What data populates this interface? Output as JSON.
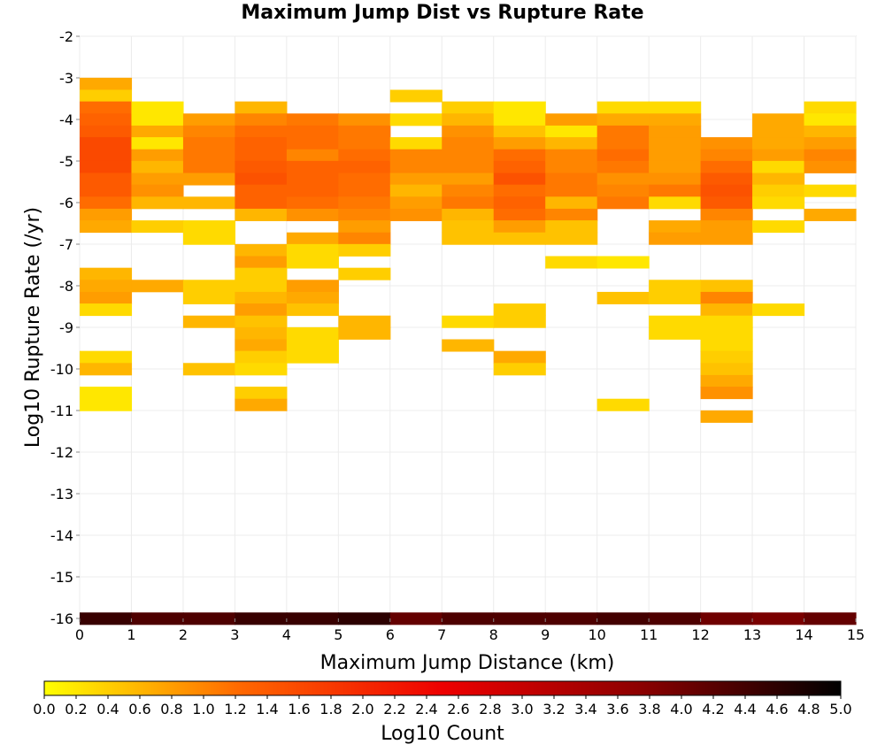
{
  "chart_data": {
    "type": "heatmap",
    "title": "Maximum Jump Dist vs Rupture Rate",
    "xlabel": "Maximum Jump Distance (km)",
    "ylabel": "Log10 Rupture Rate (/yr)",
    "xlim": [
      0,
      15
    ],
    "ylim": [
      -16,
      -2
    ],
    "x_bin_width": 1,
    "y_bin_height": 0.2857,
    "x_ticks": [
      "0",
      "1",
      "2",
      "3",
      "4",
      "5",
      "6",
      "7",
      "8",
      "9",
      "10",
      "11",
      "12",
      "13",
      "14",
      "15"
    ],
    "y_ticks": [
      "-2",
      "-3",
      "-4",
      "-5",
      "-6",
      "-7",
      "-8",
      "-9",
      "-10",
      "-11",
      "-12",
      "-13",
      "-14",
      "-15",
      "-16"
    ],
    "grid": true,
    "colorbar": {
      "label": "Log10 Count",
      "min": 0.0,
      "max": 5.0,
      "ticks": [
        "0.0",
        "0.2",
        "0.4",
        "0.6",
        "0.8",
        "1.0",
        "1.2",
        "1.4",
        "1.6",
        "1.8",
        "2.0",
        "2.2",
        "2.4",
        "2.6",
        "2.8",
        "3.0",
        "3.2",
        "3.4",
        "3.6",
        "3.8",
        "4.0",
        "4.2",
        "4.4",
        "4.6",
        "4.8",
        "5.0"
      ],
      "colors": [
        "#ffff00",
        "#ff6600",
        "#ee0000",
        "#8b0000",
        "#000000"
      ],
      "placement": "bottom"
    },
    "columns": [
      {
        "x": 0,
        "cells": [
          [
            -3.14,
            0.7
          ],
          [
            -3.43,
            0.4
          ],
          [
            -3.71,
            1.2
          ],
          [
            -4.0,
            1.3
          ],
          [
            -4.29,
            1.4
          ],
          [
            -4.57,
            1.6
          ],
          [
            -4.86,
            1.6
          ],
          [
            -5.14,
            1.6
          ],
          [
            -5.43,
            1.4
          ],
          [
            -5.71,
            1.4
          ],
          [
            -6.0,
            1.2
          ],
          [
            -6.29,
            0.8
          ],
          [
            -6.57,
            0.7
          ],
          [
            -7.71,
            0.6
          ],
          [
            -8.0,
            0.7
          ],
          [
            -8.29,
            0.8
          ],
          [
            -8.57,
            0.3
          ],
          [
            -9.71,
            0.3
          ],
          [
            -10.0,
            0.6
          ],
          [
            -10.57,
            0.2
          ],
          [
            -10.86,
            0.2
          ],
          [
            -16.0,
            4.5
          ]
        ]
      },
      {
        "x": 1,
        "cells": [
          [
            -3.71,
            0.2
          ],
          [
            -4.0,
            0.2
          ],
          [
            -4.29,
            0.7
          ],
          [
            -4.57,
            0.2
          ],
          [
            -4.86,
            0.8
          ],
          [
            -5.14,
            0.6
          ],
          [
            -5.43,
            0.8
          ],
          [
            -5.71,
            0.9
          ],
          [
            -6.0,
            0.6
          ],
          [
            -6.57,
            0.4
          ],
          [
            -8.0,
            0.7
          ],
          [
            -16.0,
            4.3
          ]
        ]
      },
      {
        "x": 2,
        "cells": [
          [
            -4.0,
            0.8
          ],
          [
            -4.29,
            1.0
          ],
          [
            -4.57,
            1.1
          ],
          [
            -4.86,
            1.1
          ],
          [
            -5.14,
            1.1
          ],
          [
            -5.43,
            0.8
          ],
          [
            -6.0,
            0.6
          ],
          [
            -6.57,
            0.3
          ],
          [
            -6.86,
            0.3
          ],
          [
            -8.0,
            0.4
          ],
          [
            -8.29,
            0.4
          ],
          [
            -8.86,
            0.6
          ],
          [
            -10.0,
            0.5
          ],
          [
            -16.0,
            4.3
          ]
        ]
      },
      {
        "x": 3,
        "cells": [
          [
            -3.71,
            0.6
          ],
          [
            -4.0,
            1.0
          ],
          [
            -4.29,
            1.2
          ],
          [
            -4.57,
            1.3
          ],
          [
            -4.86,
            1.3
          ],
          [
            -5.14,
            1.4
          ],
          [
            -5.43,
            1.5
          ],
          [
            -5.71,
            1.3
          ],
          [
            -6.0,
            1.3
          ],
          [
            -6.29,
            0.6
          ],
          [
            -7.14,
            0.6
          ],
          [
            -7.43,
            0.8
          ],
          [
            -7.71,
            0.4
          ],
          [
            -8.0,
            0.4
          ],
          [
            -8.29,
            0.6
          ],
          [
            -8.57,
            0.8
          ],
          [
            -8.86,
            0.5
          ],
          [
            -9.14,
            0.6
          ],
          [
            -9.43,
            0.7
          ],
          [
            -9.71,
            0.4
          ],
          [
            -10.0,
            0.3
          ],
          [
            -10.57,
            0.4
          ],
          [
            -10.86,
            0.7
          ],
          [
            -16.0,
            4.5
          ]
        ]
      },
      {
        "x": 4,
        "cells": [
          [
            -4.0,
            1.1
          ],
          [
            -4.29,
            1.2
          ],
          [
            -4.57,
            1.2
          ],
          [
            -4.86,
            1.0
          ],
          [
            -5.14,
            1.3
          ],
          [
            -5.43,
            1.3
          ],
          [
            -5.71,
            1.3
          ],
          [
            -6.0,
            1.2
          ],
          [
            -6.29,
            0.9
          ],
          [
            -6.86,
            0.7
          ],
          [
            -7.14,
            0.3
          ],
          [
            -7.43,
            0.3
          ],
          [
            -8.0,
            0.8
          ],
          [
            -8.29,
            0.7
          ],
          [
            -8.57,
            0.5
          ],
          [
            -9.14,
            0.3
          ],
          [
            -9.43,
            0.3
          ],
          [
            -9.71,
            0.3
          ],
          [
            -16.0,
            4.5
          ]
        ]
      },
      {
        "x": 5,
        "cells": [
          [
            -4.0,
            0.9
          ],
          [
            -4.29,
            1.1
          ],
          [
            -4.57,
            1.1
          ],
          [
            -4.86,
            1.2
          ],
          [
            -5.14,
            1.3
          ],
          [
            -5.43,
            1.2
          ],
          [
            -5.71,
            1.2
          ],
          [
            -6.0,
            1.1
          ],
          [
            -6.29,
            1.0
          ],
          [
            -6.57,
            0.8
          ],
          [
            -6.86,
            1.0
          ],
          [
            -7.14,
            0.4
          ],
          [
            -7.71,
            0.4
          ],
          [
            -8.86,
            0.6
          ],
          [
            -9.14,
            0.6
          ],
          [
            -16.0,
            4.6
          ]
        ]
      },
      {
        "x": 6,
        "cells": [
          [
            -3.43,
            0.4
          ],
          [
            -4.0,
            0.3
          ],
          [
            -4.57,
            0.3
          ],
          [
            -4.86,
            1.0
          ],
          [
            -5.14,
            1.0
          ],
          [
            -5.43,
            0.8
          ],
          [
            -5.71,
            0.6
          ],
          [
            -6.0,
            0.8
          ],
          [
            -6.29,
            0.9
          ],
          [
            -16.0,
            4.1
          ]
        ]
      },
      {
        "x": 7,
        "cells": [
          [
            -3.71,
            0.4
          ],
          [
            -4.0,
            0.6
          ],
          [
            -4.29,
            0.9
          ],
          [
            -4.57,
            1.0
          ],
          [
            -4.86,
            1.0
          ],
          [
            -5.14,
            1.0
          ],
          [
            -5.43,
            0.8
          ],
          [
            -5.71,
            1.0
          ],
          [
            -6.0,
            1.1
          ],
          [
            -6.29,
            0.6
          ],
          [
            -6.57,
            0.5
          ],
          [
            -6.86,
            0.5
          ],
          [
            -8.86,
            0.3
          ],
          [
            -9.43,
            0.6
          ],
          [
            -16.0,
            4.3
          ]
        ]
      },
      {
        "x": 8,
        "cells": [
          [
            -3.71,
            0.2
          ],
          [
            -4.0,
            0.2
          ],
          [
            -4.29,
            0.5
          ],
          [
            -4.57,
            0.8
          ],
          [
            -4.86,
            1.2
          ],
          [
            -5.14,
            1.3
          ],
          [
            -5.43,
            1.5
          ],
          [
            -5.71,
            1.2
          ],
          [
            -6.0,
            1.3
          ],
          [
            -6.29,
            1.2
          ],
          [
            -6.57,
            0.8
          ],
          [
            -6.86,
            0.5
          ],
          [
            -8.57,
            0.4
          ],
          [
            -8.86,
            0.4
          ],
          [
            -9.71,
            0.7
          ],
          [
            -10.0,
            0.4
          ],
          [
            -16.0,
            4.3
          ]
        ]
      },
      {
        "x": 9,
        "cells": [
          [
            -4.0,
            0.8
          ],
          [
            -4.29,
            0.2
          ],
          [
            -4.57,
            0.6
          ],
          [
            -4.86,
            1.0
          ],
          [
            -5.14,
            1.0
          ],
          [
            -5.43,
            1.1
          ],
          [
            -5.71,
            1.1
          ],
          [
            -6.0,
            0.6
          ],
          [
            -6.29,
            1.0
          ],
          [
            -6.57,
            0.5
          ],
          [
            -6.86,
            0.5
          ],
          [
            -7.43,
            0.3
          ],
          [
            -16.0,
            4.3
          ]
        ]
      },
      {
        "x": 10,
        "cells": [
          [
            -3.71,
            0.3
          ],
          [
            -4.0,
            0.7
          ],
          [
            -4.29,
            1.1
          ],
          [
            -4.57,
            1.1
          ],
          [
            -4.86,
            1.2
          ],
          [
            -5.14,
            1.1
          ],
          [
            -5.43,
            0.9
          ],
          [
            -5.71,
            1.0
          ],
          [
            -6.0,
            1.1
          ],
          [
            -7.43,
            0.2
          ],
          [
            -8.29,
            0.5
          ],
          [
            -10.86,
            0.3
          ],
          [
            -16.0,
            4.4
          ]
        ]
      },
      {
        "x": 11,
        "cells": [
          [
            -3.71,
            0.3
          ],
          [
            -4.0,
            0.7
          ],
          [
            -4.29,
            0.8
          ],
          [
            -4.57,
            0.8
          ],
          [
            -4.86,
            0.8
          ],
          [
            -5.14,
            0.8
          ],
          [
            -5.43,
            0.9
          ],
          [
            -5.71,
            1.1
          ],
          [
            -6.0,
            0.3
          ],
          [
            -6.57,
            0.7
          ],
          [
            -6.86,
            0.8
          ],
          [
            -8.0,
            0.4
          ],
          [
            -8.29,
            0.4
          ],
          [
            -8.86,
            0.3
          ],
          [
            -9.14,
            0.3
          ],
          [
            -16.0,
            4.3
          ]
        ]
      },
      {
        "x": 12,
        "cells": [
          [
            -4.57,
            0.9
          ],
          [
            -4.86,
            1.0
          ],
          [
            -5.14,
            1.2
          ],
          [
            -5.43,
            1.4
          ],
          [
            -5.71,
            1.5
          ],
          [
            -6.0,
            1.4
          ],
          [
            -6.29,
            1.0
          ],
          [
            -6.57,
            0.8
          ],
          [
            -6.86,
            0.8
          ],
          [
            -8.0,
            0.5
          ],
          [
            -8.29,
            1.0
          ],
          [
            -8.57,
            0.6
          ],
          [
            -8.86,
            0.3
          ],
          [
            -9.14,
            0.3
          ],
          [
            -9.43,
            0.3
          ],
          [
            -9.71,
            0.4
          ],
          [
            -10.0,
            0.5
          ],
          [
            -10.29,
            0.7
          ],
          [
            -10.57,
            0.9
          ],
          [
            -11.14,
            0.7
          ],
          [
            -16.0,
            4.0
          ]
        ]
      },
      {
        "x": 13,
        "cells": [
          [
            -4.0,
            0.7
          ],
          [
            -4.29,
            0.7
          ],
          [
            -4.57,
            0.7
          ],
          [
            -4.86,
            0.8
          ],
          [
            -5.14,
            0.3
          ],
          [
            -5.43,
            0.6
          ],
          [
            -5.71,
            0.4
          ],
          [
            -6.0,
            0.3
          ],
          [
            -6.57,
            0.3
          ],
          [
            -8.57,
            0.3
          ],
          [
            -16.0,
            3.9
          ]
        ]
      },
      {
        "x": 14,
        "cells": [
          [
            -3.71,
            0.3
          ],
          [
            -4.0,
            0.2
          ],
          [
            -4.29,
            0.6
          ],
          [
            -4.57,
            0.8
          ],
          [
            -4.86,
            1.0
          ],
          [
            -5.14,
            0.9
          ],
          [
            -5.71,
            0.3
          ],
          [
            -6.29,
            0.7
          ],
          [
            -16.0,
            4.1
          ]
        ]
      }
    ]
  }
}
